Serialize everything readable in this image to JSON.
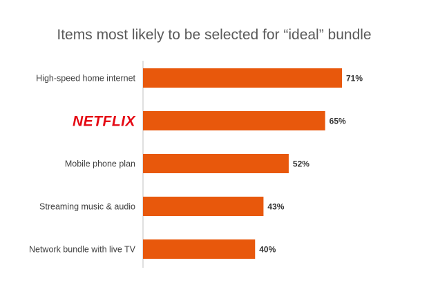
{
  "chart_data": {
    "type": "bar",
    "orientation": "horizontal",
    "title": "Items most likely to be selected for “ideal” bundle",
    "categories": [
      "High-speed home internet",
      "NETFLIX",
      "Mobile phone plan",
      "Streaming music & audio",
      "Network bundle with live TV"
    ],
    "values": [
      71,
      65,
      52,
      43,
      40
    ],
    "value_labels": [
      "71%",
      "65%",
      "52%",
      "43%",
      "40%"
    ],
    "logo_categories": [
      "NETFLIX"
    ],
    "xlim": [
      0,
      100
    ],
    "grid": false,
    "legend": "none",
    "colors": {
      "bar": "#E8580C",
      "axis": "#bfbfbf",
      "logo": "#E50914"
    }
  }
}
